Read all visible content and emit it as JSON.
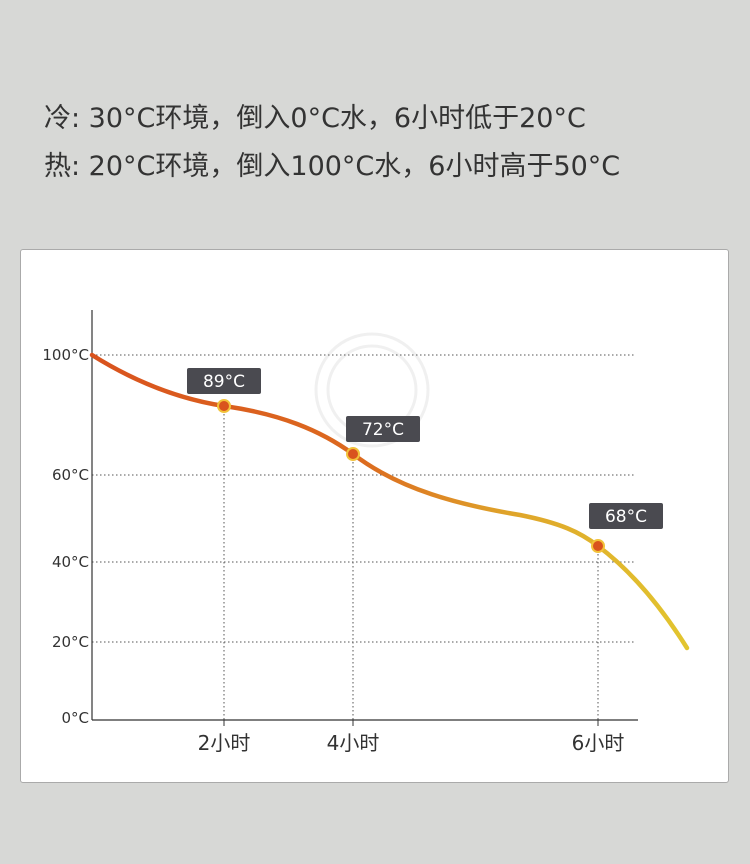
{
  "header": {
    "line1": "冷: 30°C环境，倒入0°C水，6小时低于20°C",
    "line2": "热: 20°C环境，倒入100°C水，6小时高于50°C"
  },
  "chart_data": {
    "type": "line",
    "title": "",
    "xlabel": "",
    "ylabel": "",
    "y_ticks": [
      "100°C",
      "60°C",
      "40°C",
      "20°C",
      "0°C"
    ],
    "x_ticks": [
      "2小时",
      "4小时",
      "6小时"
    ],
    "grid": "dotted horizontal at y ticks, dotted vertical at x ticks",
    "series": [
      {
        "points": [
          {
            "x": "0",
            "y": 100
          },
          {
            "x": "2小时",
            "y": 89,
            "label": "89°C"
          },
          {
            "x": "4小时",
            "y": 72,
            "label": "72°C"
          },
          {
            "x": "6小时",
            "y": 68,
            "label": "68°C"
          }
        ]
      }
    ],
    "colors": {
      "start": "#d9531e",
      "end": "#e2c52f",
      "label_bg": "#4a4a50",
      "marker_ring": "#f2c23a"
    }
  }
}
